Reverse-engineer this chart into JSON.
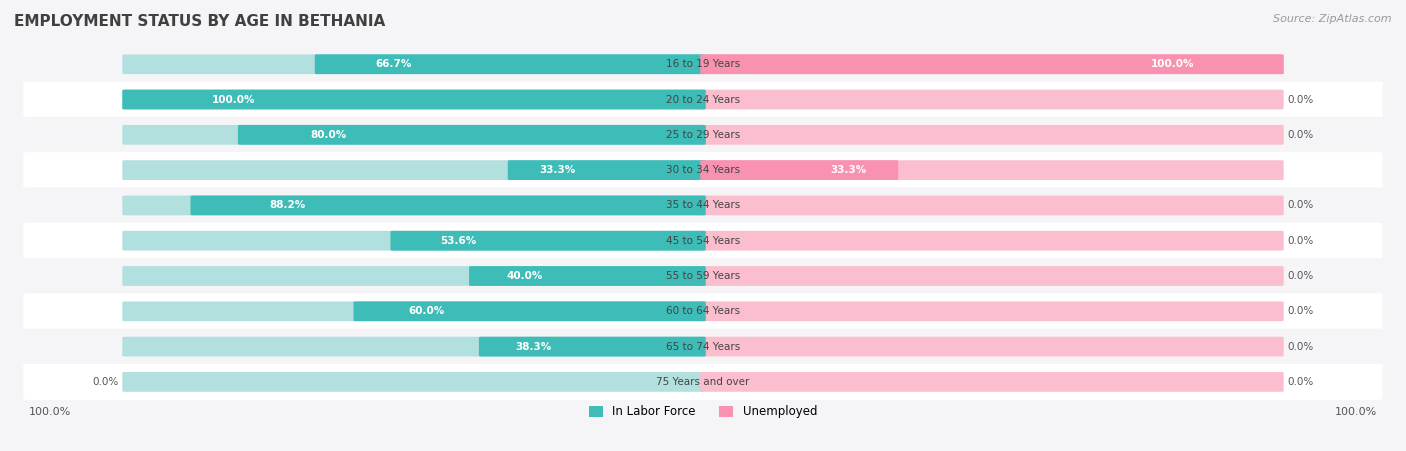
{
  "title": "EMPLOYMENT STATUS BY AGE IN BETHANIA",
  "source": "Source: ZipAtlas.com",
  "categories": [
    "16 to 19 Years",
    "20 to 24 Years",
    "25 to 29 Years",
    "30 to 34 Years",
    "35 to 44 Years",
    "45 to 54 Years",
    "55 to 59 Years",
    "60 to 64 Years",
    "65 to 74 Years",
    "75 Years and over"
  ],
  "labor_force": [
    66.7,
    100.0,
    80.0,
    33.3,
    88.2,
    53.6,
    40.0,
    60.0,
    38.3,
    0.0
  ],
  "unemployed": [
    100.0,
    0.0,
    0.0,
    33.3,
    0.0,
    0.0,
    0.0,
    0.0,
    0.0,
    0.0
  ],
  "labor_force_color": "#3dbcb8",
  "unemployed_color": "#f892b0",
  "labor_force_color_light": "#b2e0de",
  "unemployed_color_light": "#fbbece",
  "row_bg_even": "#f5f5f8",
  "row_bg_odd": "#ffffff",
  "text_color_dark": "#555555",
  "text_color_white": "#ffffff",
  "title_color": "#404040",
  "source_color": "#999999",
  "max_value": 100.0,
  "bottom_left_label": "100.0%",
  "bottom_right_label": "100.0%",
  "legend_labor": "In Labor Force",
  "legend_unemployed": "Unemployed",
  "fig_bg": "#f5f5f8"
}
